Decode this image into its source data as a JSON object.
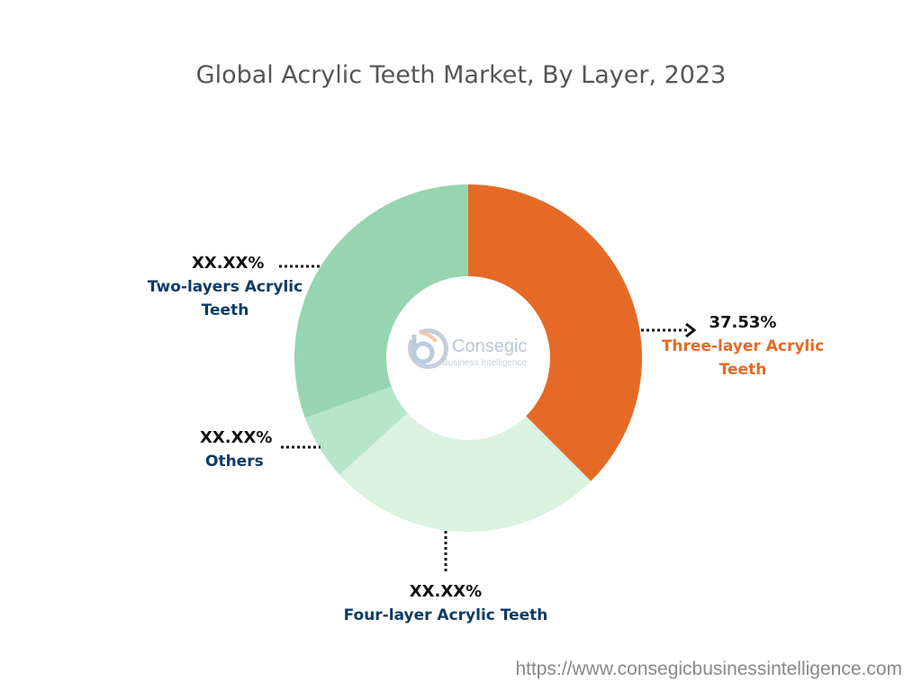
{
  "chart_data": {
    "type": "pie",
    "title": "Global Acrylic Teeth Market, By Layer, 2023",
    "donut": true,
    "slices": [
      {
        "label": "Three-layer Acrylic Teeth",
        "value": 37.53,
        "display": "37.53%",
        "color": "#E46A26",
        "label_color": "#E46A26"
      },
      {
        "label": "Four-layer Acrylic Teeth",
        "value": 25.75,
        "display": "XX.XX%",
        "color": "#DAF2DF",
        "label_color": "#0D3B66"
      },
      {
        "label": "Others",
        "value": 6.1,
        "display": "XX.XX%",
        "color": "#B7E5C8",
        "label_color": "#0D3B66"
      },
      {
        "label": "Two-layers Acrylic Teeth",
        "value": 30.62,
        "display": "XX.XX%",
        "color": "#96D5B0",
        "label_color": "#0D3B66"
      }
    ]
  },
  "logo": {
    "name": "Consegic",
    "tagline": "Business Intelligence"
  },
  "footer": {
    "url": "https://www.consegicbusinessintelligence.com"
  }
}
